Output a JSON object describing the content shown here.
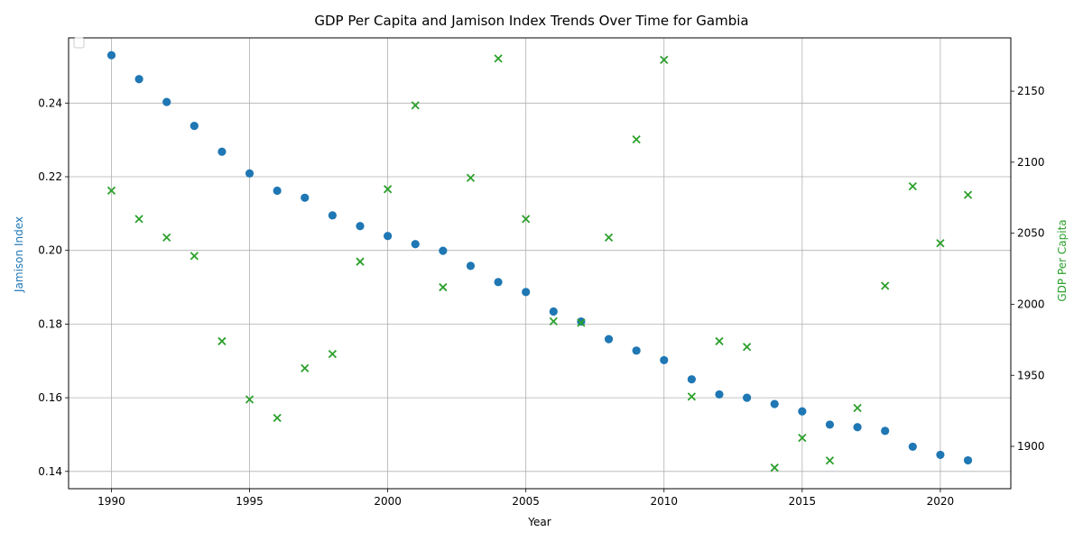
{
  "chart_data": {
    "type": "scatter",
    "title": "GDP Per Capita and Jamison Index Trends Over Time for Gambia",
    "xlabel": "Year",
    "ylabel_left": "Jamison Index",
    "ylabel_right": "GDP Per Capita",
    "x": [
      1990,
      1991,
      1992,
      1993,
      1994,
      1995,
      1996,
      1997,
      1998,
      1999,
      2000,
      2001,
      2002,
      2003,
      2004,
      2005,
      2006,
      2007,
      2008,
      2009,
      2010,
      2011,
      2012,
      2013,
      2014,
      2015,
      2016,
      2017,
      2018,
      2019,
      2020,
      2021
    ],
    "series": [
      {
        "axis": "left",
        "marker": "circle",
        "color": "#1f77b4",
        "values": [
          0.253,
          0.2465,
          0.2403,
          0.2338,
          0.2268,
          0.2209,
          0.2162,
          0.2143,
          0.2095,
          0.2066,
          0.2039,
          0.2017,
          0.1999,
          0.1958,
          0.1914,
          0.1887,
          0.1834,
          0.1807,
          0.1759,
          0.1728,
          0.1702,
          0.165,
          0.1609,
          0.16,
          0.1583,
          0.1563,
          0.1527,
          0.152,
          0.151,
          0.1467,
          0.1445,
          0.143
        ]
      },
      {
        "axis": "right",
        "marker": "x",
        "color": "#2ca02c",
        "values": [
          2080,
          2060,
          2047,
          2034,
          1974,
          1933,
          1920,
          1955,
          1965,
          2030,
          2081,
          2140,
          2012,
          2089,
          2173,
          2060,
          1988,
          1987,
          2047,
          2116,
          2172,
          1935,
          1974,
          1970,
          1885,
          1906,
          1890,
          1927,
          2013,
          2083,
          2043,
          2077
        ]
      }
    ],
    "xlim": [
      1988.45,
      2022.55
    ],
    "ylim_left": [
      0.1353,
      0.2577
    ],
    "ylim_right": [
      1870.2,
      2187.5
    ],
    "xticks": [
      1990,
      1995,
      2000,
      2005,
      2010,
      2015,
      2020
    ],
    "yticks_left": [
      0.14,
      0.16,
      0.18,
      0.2,
      0.22,
      0.24
    ],
    "yticks_left_labels": [
      "0.14",
      "0.16",
      "0.18",
      "0.20",
      "0.22",
      "0.24"
    ],
    "yticks_right": [
      1900,
      1950,
      2000,
      2050,
      2100,
      2150
    ],
    "grid": true,
    "legend": "top-left (empty)",
    "colors": {
      "left_axis": "#1f77b4",
      "right_axis": "#2ca02c",
      "grid": "#b0b0b0"
    }
  }
}
